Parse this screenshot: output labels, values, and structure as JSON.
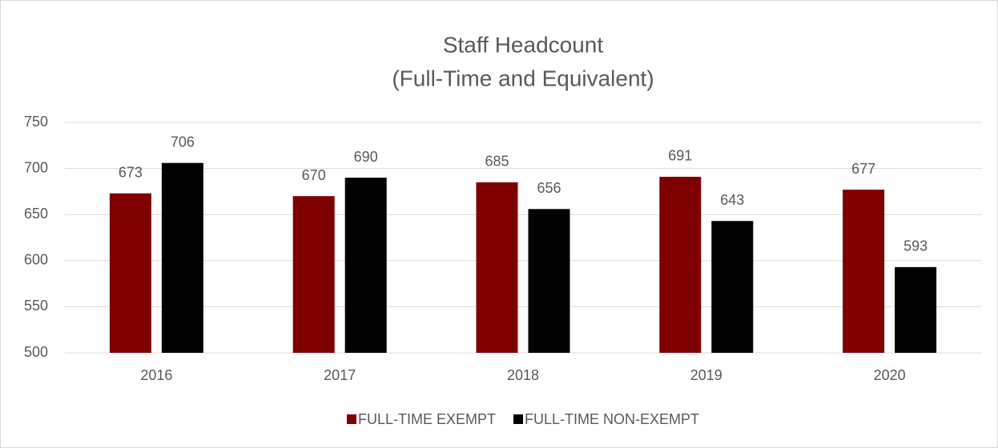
{
  "chart_data": {
    "type": "bar",
    "title": "Staff Headcount",
    "subtitle": "(Full-Time and Equivalent)",
    "categories": [
      "2016",
      "2017",
      "2018",
      "2019",
      "2020"
    ],
    "series": [
      {
        "name": "FULL-TIME EXEMPT",
        "color": "#7f0000",
        "values": [
          673,
          670,
          685,
          691,
          677
        ]
      },
      {
        "name": "FULL-TIME NON-EXEMPT",
        "color": "#000000",
        "values": [
          706,
          690,
          656,
          643,
          593
        ]
      }
    ],
    "ylim": [
      500,
      750
    ],
    "yticks": [
      500,
      550,
      600,
      650,
      700,
      750
    ],
    "grid": true,
    "legend": "bottom"
  }
}
